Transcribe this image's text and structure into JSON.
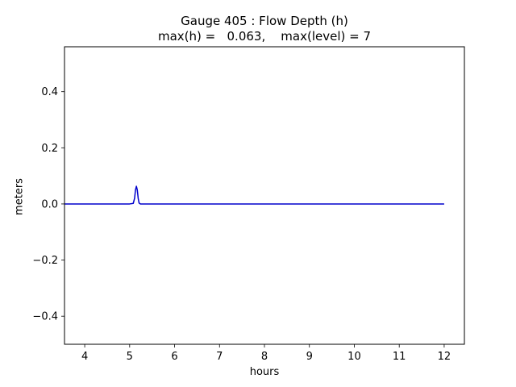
{
  "chart_data": {
    "type": "line",
    "title": "Gauge 405 : Flow Depth (h)",
    "subtitle": "max(h) =   0.063,    max(level) = 7",
    "xlabel": "hours",
    "ylabel": "meters",
    "xlim": [
      3.55,
      12.45
    ],
    "ylim": [
      -0.5,
      0.56
    ],
    "xticks": [
      4,
      5,
      6,
      7,
      8,
      9,
      10,
      11,
      12
    ],
    "xtick_labels": [
      "4",
      "5",
      "6",
      "7",
      "8",
      "9",
      "10",
      "11",
      "12"
    ],
    "yticks": [
      -0.4,
      -0.2,
      0.0,
      0.2,
      0.4
    ],
    "ytick_labels": [
      "−0.4",
      "−0.2",
      "0.0",
      "0.2",
      "0.4"
    ],
    "grid": false,
    "series": [
      {
        "color": "#0000cc",
        "x": [
          3.55,
          5.0,
          5.08,
          5.11,
          5.13,
          5.15,
          5.17,
          5.19,
          5.21,
          5.24,
          5.3,
          12.0
        ],
        "y": [
          0.0,
          0.0,
          0.002,
          0.02,
          0.05,
          0.063,
          0.05,
          0.02,
          0.003,
          0.0,
          0.0,
          0.0
        ]
      }
    ]
  }
}
